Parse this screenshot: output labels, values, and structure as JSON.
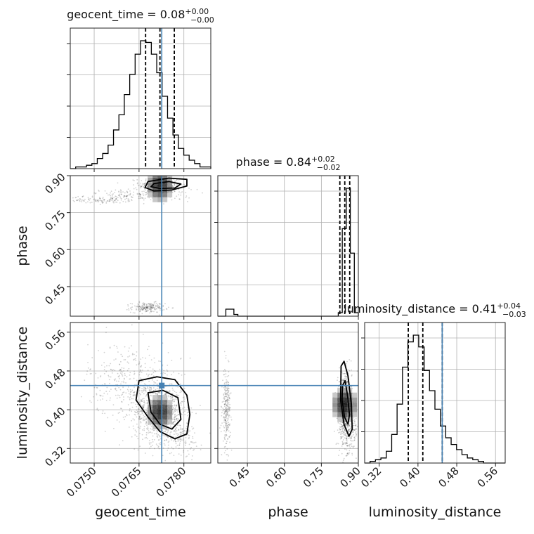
{
  "chart_data": {
    "type": "corner",
    "parameters": [
      {
        "name": "geocent_time",
        "axis_label": "geocent_time",
        "range": [
          0.0742,
          0.0789
        ],
        "truth": 0.07726,
        "median": 0.0772,
        "quantiles": [
          0.07672,
          0.0772,
          0.07768
        ],
        "title": {
          "label": "geocent_time = 0.08",
          "upper": "+0.00",
          "lower": "−0.00"
        },
        "ticks": [
          0.075,
          0.0765,
          0.078
        ],
        "tick_labels": [
          "0.0750",
          "0.0765",
          "0.0780"
        ],
        "hist_counts": [
          0,
          1,
          1,
          2,
          3,
          6,
          9,
          14,
          23,
          32,
          44,
          56,
          68,
          76,
          75,
          68,
          57,
          43,
          30,
          20,
          12,
          8,
          5,
          3,
          1,
          1
        ],
        "hist_units": "relative frequency (peak normalized)"
      },
      {
        "name": "phase",
        "axis_label": "phase",
        "range": [
          0.33,
          0.9
        ],
        "truth": null,
        "median": 0.845,
        "quantiles": [
          0.825,
          0.845,
          0.865
        ],
        "title": {
          "label": "phase = 0.84",
          "upper": "+0.02",
          "lower": "−0.02"
        },
        "ticks": [
          0.45,
          0.6,
          0.75,
          0.9
        ],
        "tick_labels": [
          "0.45",
          "0.60",
          "0.75",
          "0.90"
        ],
        "hist_counts": [
          0,
          0,
          4,
          4,
          1,
          0,
          0,
          0,
          0,
          0,
          0,
          0,
          0,
          0,
          0,
          0,
          0,
          0,
          0,
          0,
          0,
          0,
          0,
          0,
          0,
          0,
          0,
          0,
          0,
          0,
          2,
          50,
          73,
          36,
          2
        ],
        "hist_units": "relative frequency (peak normalized)"
      },
      {
        "name": "luminosity_distance",
        "axis_label": "luminosity_distance",
        "range": [
          0.29,
          0.58
        ],
        "truth": 0.45,
        "median": 0.41,
        "quantiles": [
          0.38,
          0.41,
          0.45
        ],
        "title": {
          "label": "luminosity_distance = 0.41",
          "upper": "+0.04",
          "lower": "−0.03"
        },
        "ticks": [
          0.32,
          0.4,
          0.48,
          0.56
        ],
        "tick_labels": [
          "0.32",
          "0.40",
          "0.48",
          "0.56"
        ],
        "hist_counts": [
          0,
          1,
          2,
          3,
          7,
          17,
          35,
          57,
          72,
          76,
          69,
          55,
          43,
          32,
          22,
          15,
          11,
          8,
          5,
          3,
          2,
          1,
          0,
          0,
          0,
          0
        ],
        "hist_units": "relative frequency (peak normalized)"
      }
    ],
    "truth_color": "#4682b4",
    "grid": true,
    "quantile_line_style": "dashed",
    "scatter_color": "#000000"
  }
}
